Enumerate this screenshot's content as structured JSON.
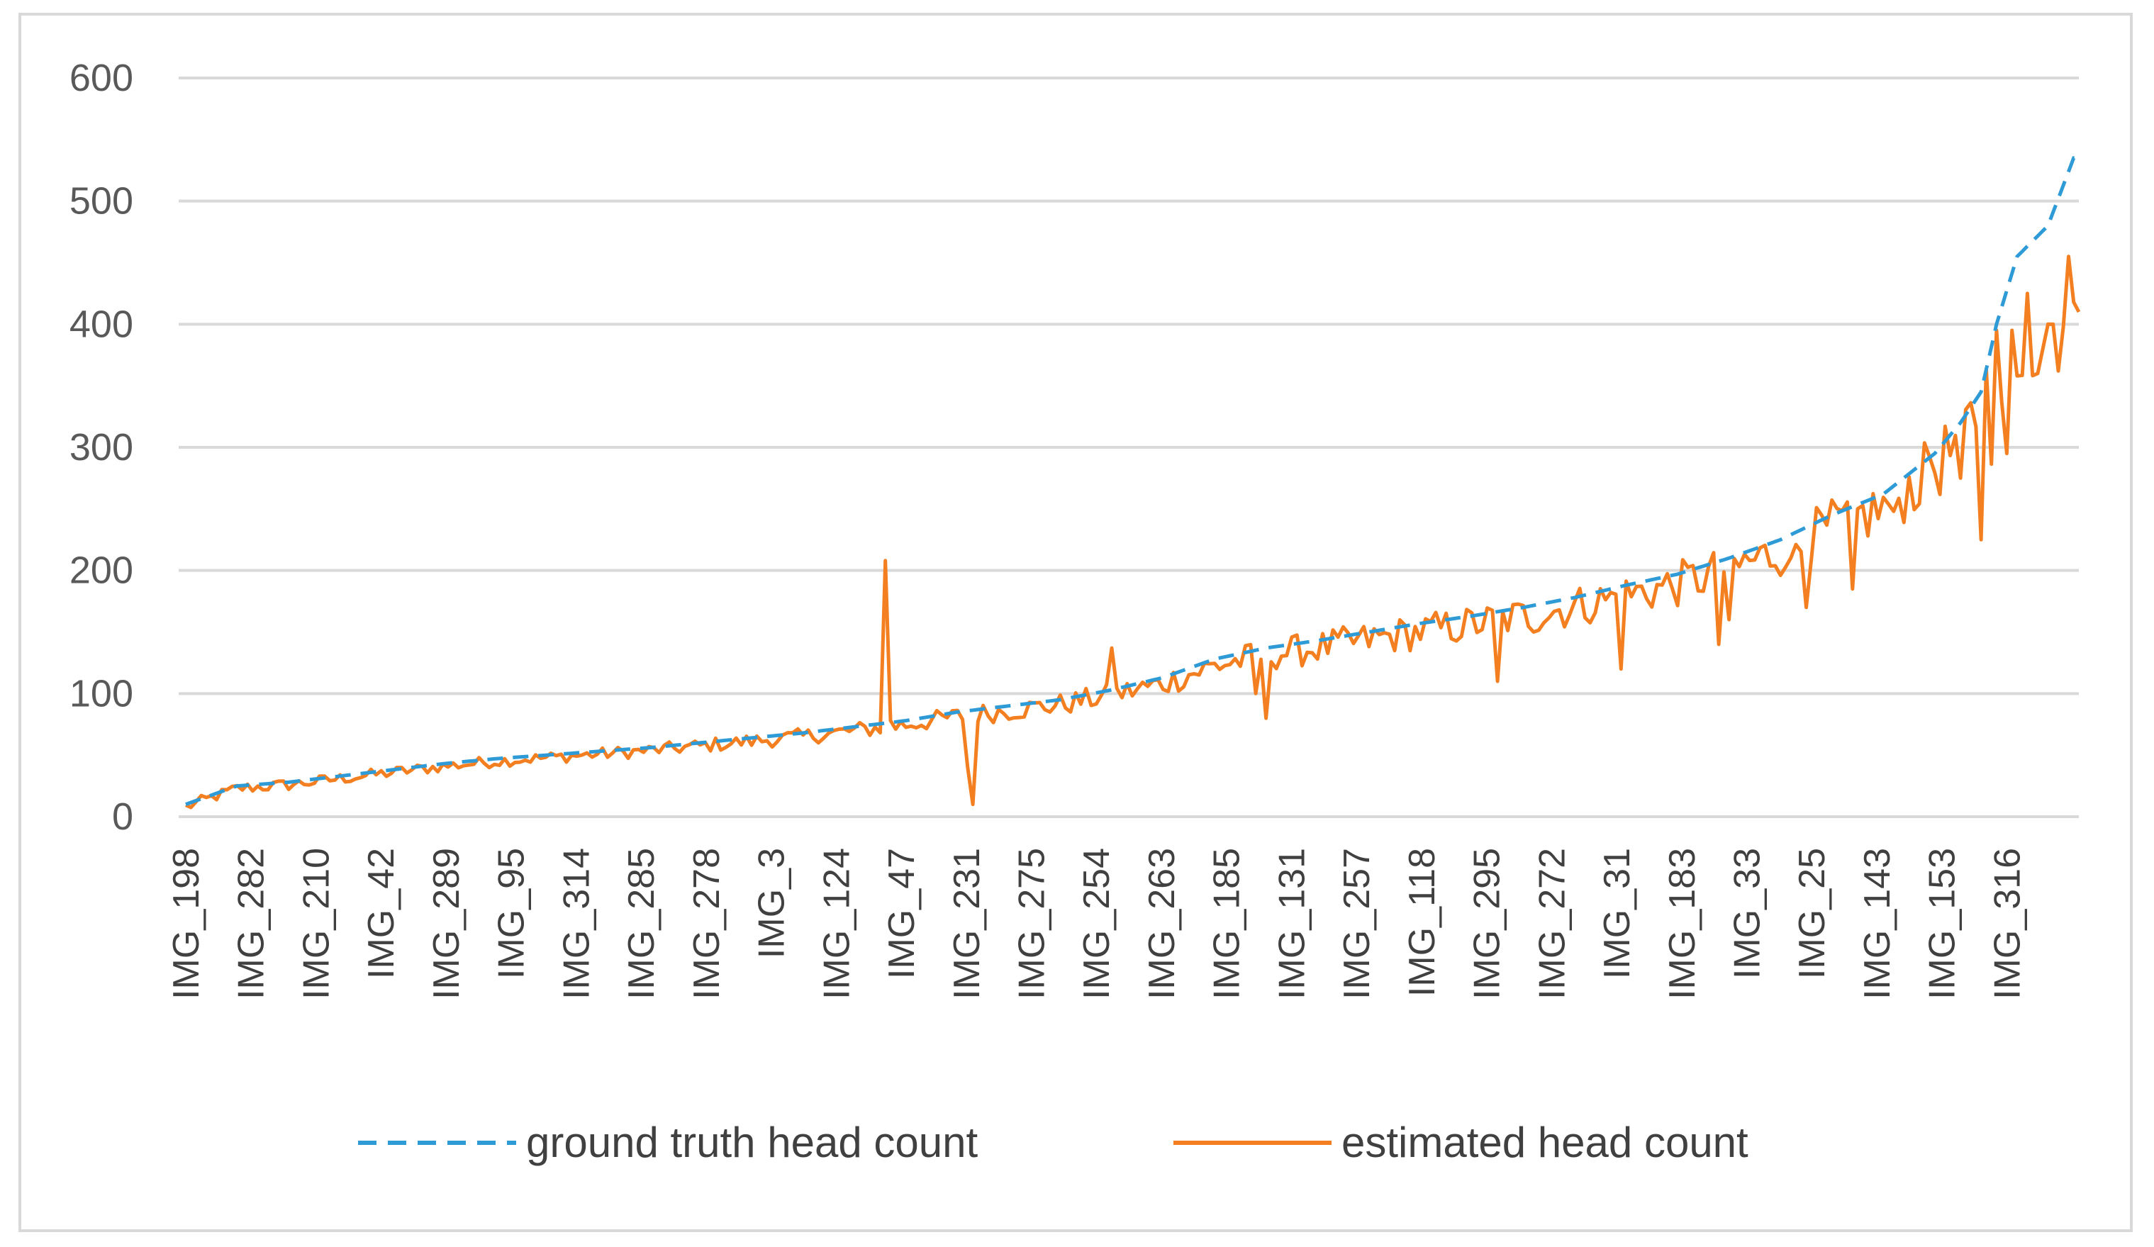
{
  "chart_data": {
    "type": "line",
    "title": "",
    "xlabel": "",
    "ylabel": "",
    "ylim": [
      0,
      600
    ],
    "y_ticks": [
      0,
      100,
      200,
      300,
      400,
      500,
      600
    ],
    "x_tick_labels": [
      "IMG_198",
      "IMG_282",
      "IMG_210",
      "IMG_42",
      "IMG_289",
      "IMG_95",
      "IMG_314",
      "IMG_285",
      "IMG_278",
      "IMG_3",
      "IMG_124",
      "IMG_47",
      "IMG_231",
      "IMG_275",
      "IMG_254",
      "IMG_263",
      "IMG_185",
      "IMG_131",
      "IMG_257",
      "IMG_118",
      "IMG_295",
      "IMG_272",
      "IMG_31",
      "IMG_183",
      "IMG_33",
      "IMG_25",
      "IMG_143",
      "IMG_153",
      "IMG_316"
    ],
    "grid": true,
    "legend_position": "bottom",
    "series": [
      {
        "name": "ground truth head count",
        "color": "#2e9ad6",
        "style": "dashed",
        "anchors": [
          [
            0,
            10
          ],
          [
            10,
            25
          ],
          [
            20,
            28
          ],
          [
            30,
            33
          ],
          [
            40,
            38
          ],
          [
            50,
            43
          ],
          [
            60,
            47
          ],
          [
            70,
            50
          ],
          [
            80,
            53
          ],
          [
            90,
            56
          ],
          [
            100,
            60
          ],
          [
            110,
            64
          ],
          [
            120,
            68
          ],
          [
            130,
            73
          ],
          [
            140,
            78
          ],
          [
            150,
            85
          ],
          [
            160,
            90
          ],
          [
            170,
            95
          ],
          [
            180,
            103
          ],
          [
            190,
            113
          ],
          [
            200,
            128
          ],
          [
            210,
            137
          ],
          [
            220,
            143
          ],
          [
            230,
            150
          ],
          [
            240,
            157
          ],
          [
            250,
            163
          ],
          [
            260,
            170
          ],
          [
            270,
            178
          ],
          [
            280,
            188
          ],
          [
            290,
            197
          ],
          [
            300,
            210
          ],
          [
            310,
            225
          ],
          [
            320,
            245
          ],
          [
            330,
            262
          ],
          [
            340,
            295
          ],
          [
            345,
            320
          ],
          [
            349,
            345
          ],
          [
            352,
            400
          ],
          [
            356,
            455
          ],
          [
            362,
            480
          ],
          [
            367,
            535
          ]
        ]
      },
      {
        "name": "estimated head count",
        "color": "#f47f20",
        "style": "solid",
        "spikes": [
          [
            136,
            208
          ],
          [
            137,
            78
          ],
          [
            153,
            10
          ],
          [
            152,
            40
          ],
          [
            180,
            137
          ],
          [
            208,
            100
          ],
          [
            210,
            80
          ],
          [
            255,
            110
          ],
          [
            262,
            150
          ],
          [
            279,
            120
          ],
          [
            298,
            140
          ],
          [
            300,
            160
          ],
          [
            312,
            210
          ],
          [
            315,
            170
          ],
          [
            324,
            185
          ],
          [
            332,
            248
          ],
          [
            339,
            292
          ],
          [
            345,
            275
          ],
          [
            349,
            225
          ],
          [
            352,
            395
          ],
          [
            354,
            295
          ],
          [
            355,
            395
          ],
          [
            356,
            358
          ],
          [
            358,
            425
          ],
          [
            360,
            360
          ],
          [
            362,
            400
          ],
          [
            364,
            362
          ],
          [
            366,
            455
          ],
          [
            367,
            418
          ],
          [
            368,
            410
          ]
        ]
      }
    ]
  }
}
